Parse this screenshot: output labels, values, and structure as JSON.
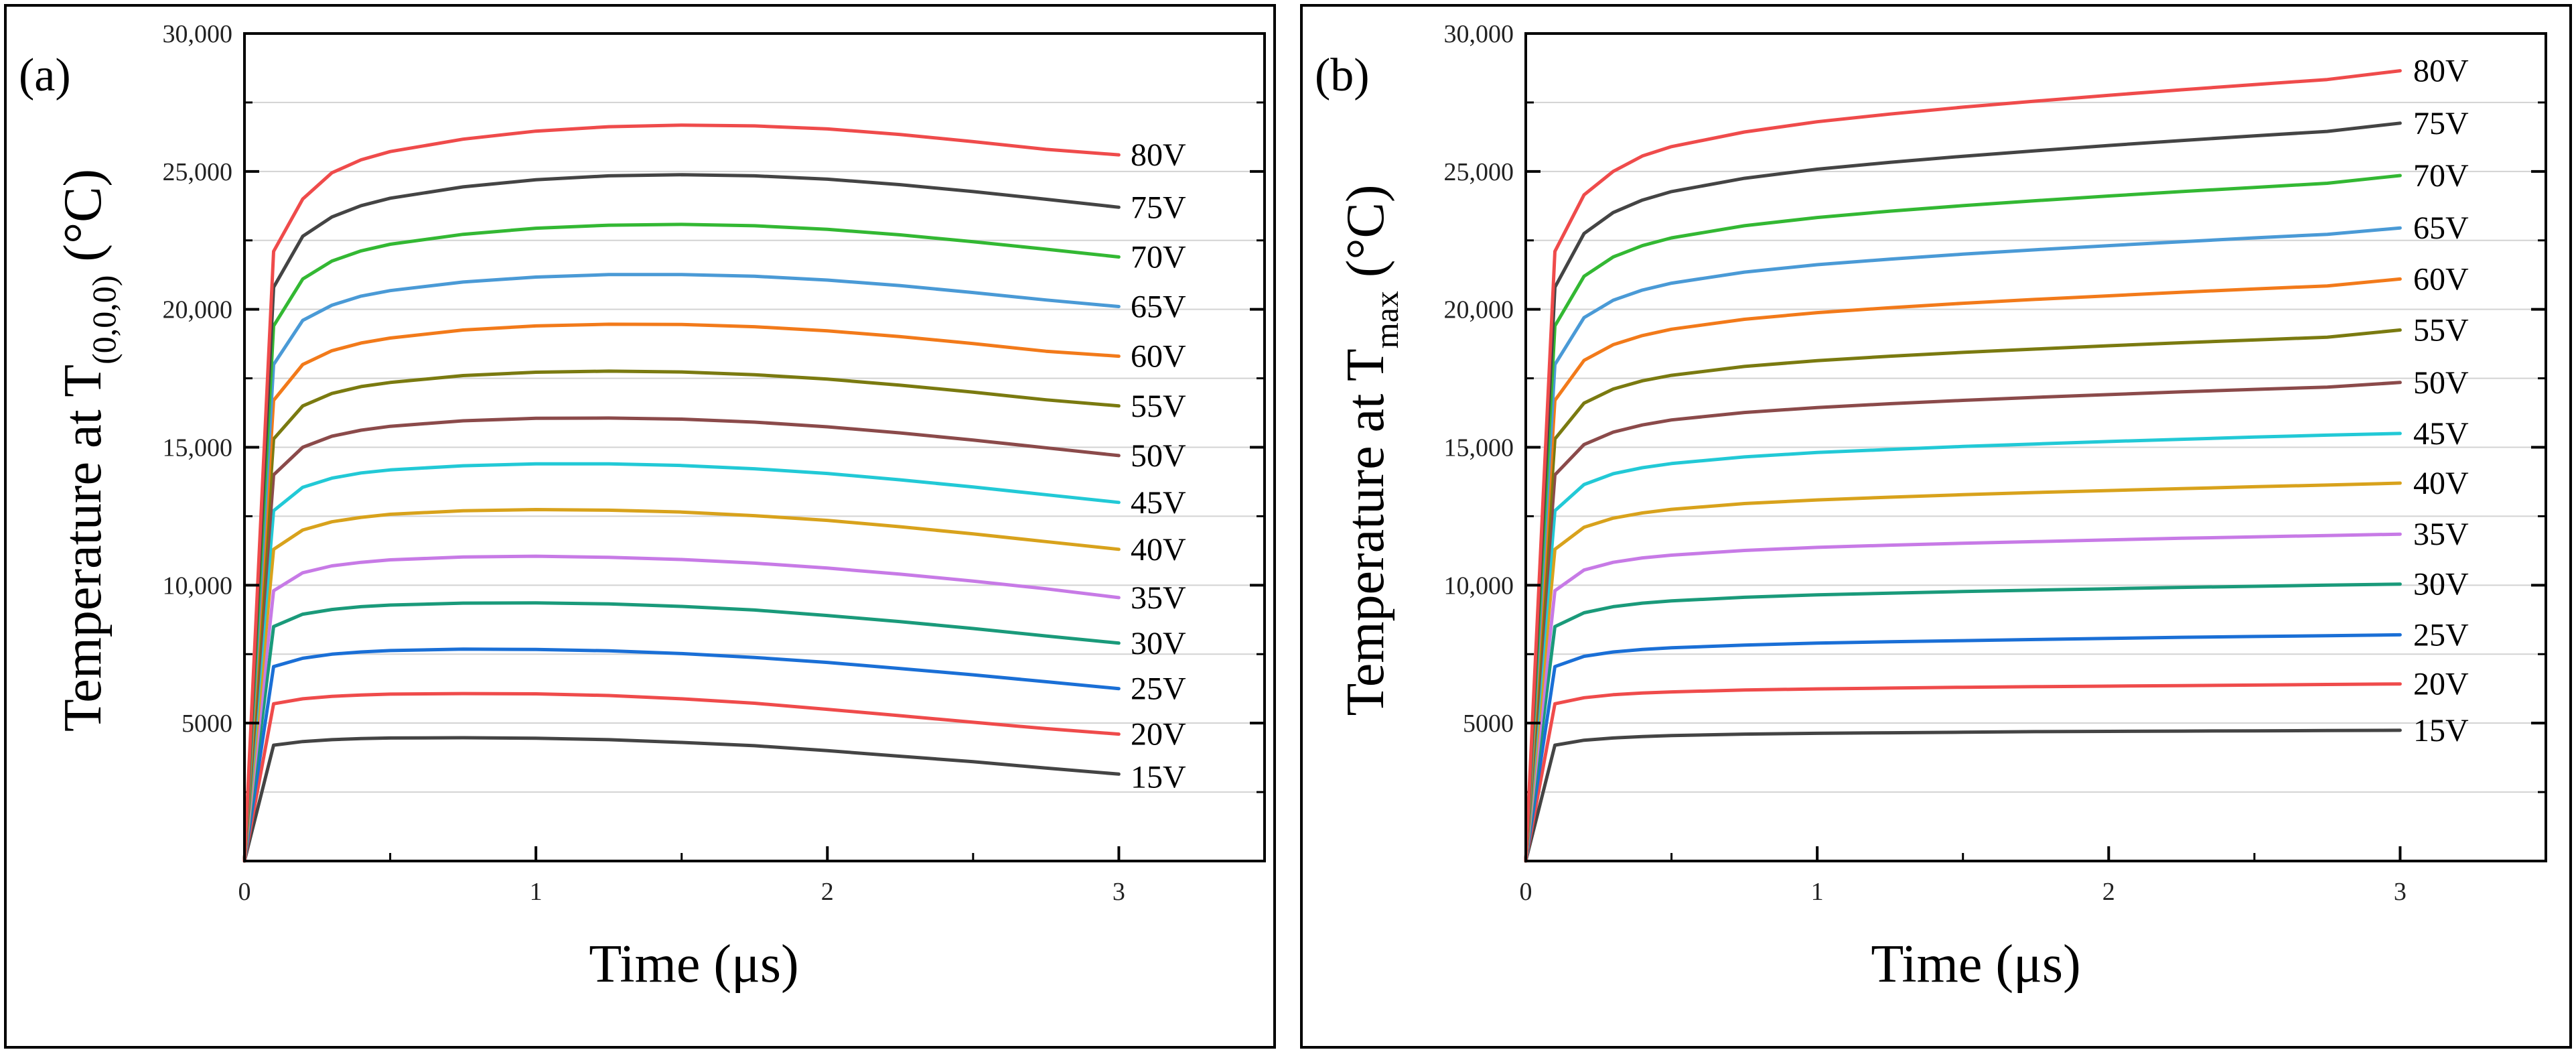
{
  "chart_data": [
    {
      "type": "line",
      "panel_label": "(a)",
      "ylabel_main": "Temperature at T",
      "ylabel_sub": "(0,0,0)",
      "ylabel_unit": " (°C)",
      "xlabel": "Time (μs)",
      "xlim": [
        0,
        3.5
      ],
      "ylim": [
        0,
        30000
      ],
      "xticks": [
        0,
        1,
        2,
        3
      ],
      "xtick_labels": [
        "0",
        "1",
        "2",
        "3"
      ],
      "yticks": [
        5000,
        10000,
        15000,
        20000,
        25000,
        30000
      ],
      "ytick_labels": [
        "5000",
        "10,000",
        "15,000",
        "20,000",
        "25,000",
        "30,000"
      ],
      "grid": true,
      "x": [
        0,
        0.1,
        0.2,
        0.3,
        0.4,
        0.5,
        0.75,
        1.0,
        1.25,
        1.5,
        1.75,
        2.0,
        2.25,
        2.5,
        2.75,
        3.0
      ],
      "series": [
        {
          "name": "15V",
          "color": "#444444",
          "values": [
            0,
            4200,
            4330,
            4400,
            4440,
            4460,
            4470,
            4450,
            4400,
            4300,
            4180,
            4000,
            3800,
            3600,
            3370,
            3150
          ]
        },
        {
          "name": "20V",
          "color": "#ef4b4b",
          "values": [
            0,
            5700,
            5880,
            5970,
            6020,
            6050,
            6070,
            6060,
            6000,
            5880,
            5720,
            5500,
            5270,
            5030,
            4800,
            4600
          ]
        },
        {
          "name": "25V",
          "color": "#1a6fd6",
          "values": [
            0,
            7050,
            7350,
            7500,
            7580,
            7630,
            7680,
            7670,
            7620,
            7520,
            7380,
            7200,
            6980,
            6750,
            6500,
            6250
          ]
        },
        {
          "name": "30V",
          "color": "#1a9a7a",
          "values": [
            0,
            8500,
            8950,
            9120,
            9220,
            9280,
            9350,
            9360,
            9320,
            9230,
            9100,
            8900,
            8680,
            8430,
            8160,
            7900
          ]
        },
        {
          "name": "35V",
          "color": "#c77ae6",
          "values": [
            0,
            9800,
            10450,
            10700,
            10830,
            10920,
            11020,
            11050,
            11010,
            10930,
            10800,
            10620,
            10400,
            10150,
            9870,
            9550
          ]
        },
        {
          "name": "40V",
          "color": "#d8a21c",
          "values": [
            0,
            11300,
            12000,
            12300,
            12460,
            12570,
            12700,
            12740,
            12720,
            12650,
            12520,
            12350,
            12120,
            11860,
            11580,
            11300
          ]
        },
        {
          "name": "45V",
          "color": "#22c9d6",
          "values": [
            0,
            12700,
            13550,
            13880,
            14070,
            14180,
            14330,
            14400,
            14400,
            14340,
            14220,
            14050,
            13820,
            13560,
            13280,
            13000
          ]
        },
        {
          "name": "50V",
          "color": "#8b4a4a",
          "values": [
            0,
            14000,
            15000,
            15400,
            15620,
            15760,
            15960,
            16050,
            16060,
            16020,
            15910,
            15740,
            15520,
            15260,
            14980,
            14700
          ]
        },
        {
          "name": "55V",
          "color": "#7a7a10",
          "values": [
            0,
            15300,
            16500,
            16950,
            17200,
            17350,
            17600,
            17720,
            17760,
            17730,
            17630,
            17470,
            17250,
            17000,
            16720,
            16500
          ]
        },
        {
          "name": "60V",
          "color": "#f27a1a",
          "values": [
            0,
            16700,
            18000,
            18500,
            18780,
            18960,
            19250,
            19400,
            19460,
            19450,
            19370,
            19220,
            19010,
            18760,
            18480,
            18300
          ]
        },
        {
          "name": "65V",
          "color": "#4a9ad6",
          "values": [
            0,
            18000,
            19600,
            20150,
            20480,
            20680,
            20990,
            21170,
            21260,
            21260,
            21200,
            21060,
            20860,
            20610,
            20340,
            20100
          ]
        },
        {
          "name": "70V",
          "color": "#33b833",
          "values": [
            0,
            19400,
            21100,
            21750,
            22120,
            22360,
            22720,
            22940,
            23050,
            23080,
            23030,
            22900,
            22700,
            22450,
            22180,
            21900
          ]
        },
        {
          "name": "75V",
          "color": "#444444",
          "values": [
            0,
            20800,
            22650,
            23350,
            23760,
            24030,
            24440,
            24700,
            24840,
            24880,
            24840,
            24720,
            24520,
            24270,
            23990,
            23700
          ]
        },
        {
          "name": "80V",
          "color": "#ef4b4b",
          "values": [
            0,
            22100,
            24000,
            24950,
            25420,
            25720,
            26170,
            26460,
            26620,
            26680,
            26650,
            26540,
            26340,
            26080,
            25800,
            25600
          ]
        }
      ]
    },
    {
      "type": "line",
      "panel_label": "(b)",
      "ylabel_main": "Temperature at T",
      "ylabel_sub": "max",
      "ylabel_unit": " (°C)",
      "xlabel": "Time (μs)",
      "xlim": [
        0,
        3.5
      ],
      "ylim": [
        0,
        30000
      ],
      "xticks": [
        0,
        1,
        2,
        3
      ],
      "xtick_labels": [
        "0",
        "1",
        "2",
        "3"
      ],
      "yticks": [
        5000,
        10000,
        15000,
        20000,
        25000,
        30000
      ],
      "ytick_labels": [
        "5000",
        "10,000",
        "15,000",
        "20,000",
        "25,000",
        "30,000"
      ],
      "grid": true,
      "x": [
        0,
        0.1,
        0.2,
        0.3,
        0.4,
        0.5,
        0.75,
        1.0,
        1.25,
        1.5,
        1.75,
        2.0,
        2.25,
        2.5,
        2.75,
        3.0
      ],
      "series": [
        {
          "name": "15V",
          "color": "#444444",
          "values": [
            0,
            4200,
            4380,
            4460,
            4510,
            4550,
            4600,
            4630,
            4650,
            4670,
            4690,
            4700,
            4710,
            4720,
            4730,
            4740
          ]
        },
        {
          "name": "20V",
          "color": "#ef4b4b",
          "values": [
            0,
            5700,
            5920,
            6030,
            6090,
            6130,
            6200,
            6240,
            6270,
            6300,
            6320,
            6340,
            6360,
            6380,
            6400,
            6420
          ]
        },
        {
          "name": "25V",
          "color": "#1a6fd6",
          "values": [
            0,
            7050,
            7420,
            7580,
            7670,
            7730,
            7830,
            7900,
            7950,
            7990,
            8030,
            8070,
            8110,
            8140,
            8170,
            8200
          ]
        },
        {
          "name": "30V",
          "color": "#1a9a7a",
          "values": [
            0,
            8500,
            9000,
            9220,
            9350,
            9430,
            9560,
            9650,
            9710,
            9770,
            9820,
            9870,
            9920,
            9960,
            10000,
            10040
          ]
        },
        {
          "name": "35V",
          "color": "#c77ae6",
          "values": [
            0,
            9800,
            10550,
            10830,
            10990,
            11090,
            11260,
            11370,
            11450,
            11520,
            11580,
            11640,
            11700,
            11750,
            11800,
            11850
          ]
        },
        {
          "name": "40V",
          "color": "#d8a21c",
          "values": [
            0,
            11300,
            12100,
            12430,
            12620,
            12750,
            12960,
            13090,
            13190,
            13280,
            13360,
            13430,
            13500,
            13570,
            13630,
            13700
          ]
        },
        {
          "name": "45V",
          "color": "#22c9d6",
          "values": [
            0,
            12700,
            13650,
            14040,
            14260,
            14410,
            14650,
            14810,
            14920,
            15030,
            15120,
            15210,
            15290,
            15370,
            15440,
            15500
          ]
        },
        {
          "name": "50V",
          "color": "#8b4a4a",
          "values": [
            0,
            14000,
            15100,
            15550,
            15810,
            15990,
            16260,
            16440,
            16580,
            16700,
            16810,
            16910,
            17010,
            17100,
            17180,
            17350
          ]
        },
        {
          "name": "55V",
          "color": "#7a7a10",
          "values": [
            0,
            15300,
            16600,
            17110,
            17410,
            17610,
            17930,
            18140,
            18300,
            18440,
            18560,
            18680,
            18790,
            18890,
            18990,
            19250
          ]
        },
        {
          "name": "60V",
          "color": "#f27a1a",
          "values": [
            0,
            16700,
            18150,
            18720,
            19050,
            19280,
            19640,
            19880,
            20060,
            20220,
            20360,
            20490,
            20620,
            20740,
            20850,
            21100
          ]
        },
        {
          "name": "65V",
          "color": "#4a9ad6",
          "values": [
            0,
            18000,
            19700,
            20330,
            20700,
            20950,
            21350,
            21620,
            21820,
            22000,
            22160,
            22310,
            22450,
            22590,
            22720,
            22950
          ]
        },
        {
          "name": "70V",
          "color": "#33b833",
          "values": [
            0,
            19400,
            21200,
            21900,
            22310,
            22590,
            23030,
            23330,
            23560,
            23760,
            23940,
            24110,
            24270,
            24420,
            24570,
            24850
          ]
        },
        {
          "name": "75V",
          "color": "#444444",
          "values": [
            0,
            20800,
            22750,
            23510,
            23960,
            24270,
            24750,
            25080,
            25330,
            25550,
            25750,
            25940,
            26120,
            26290,
            26450,
            26750
          ]
        },
        {
          "name": "80V",
          "color": "#ef4b4b",
          "values": [
            0,
            22100,
            24150,
            25000,
            25560,
            25900,
            26430,
            26800,
            27080,
            27330,
            27550,
            27760,
            27960,
            28150,
            28330,
            28650
          ]
        }
      ]
    }
  ]
}
